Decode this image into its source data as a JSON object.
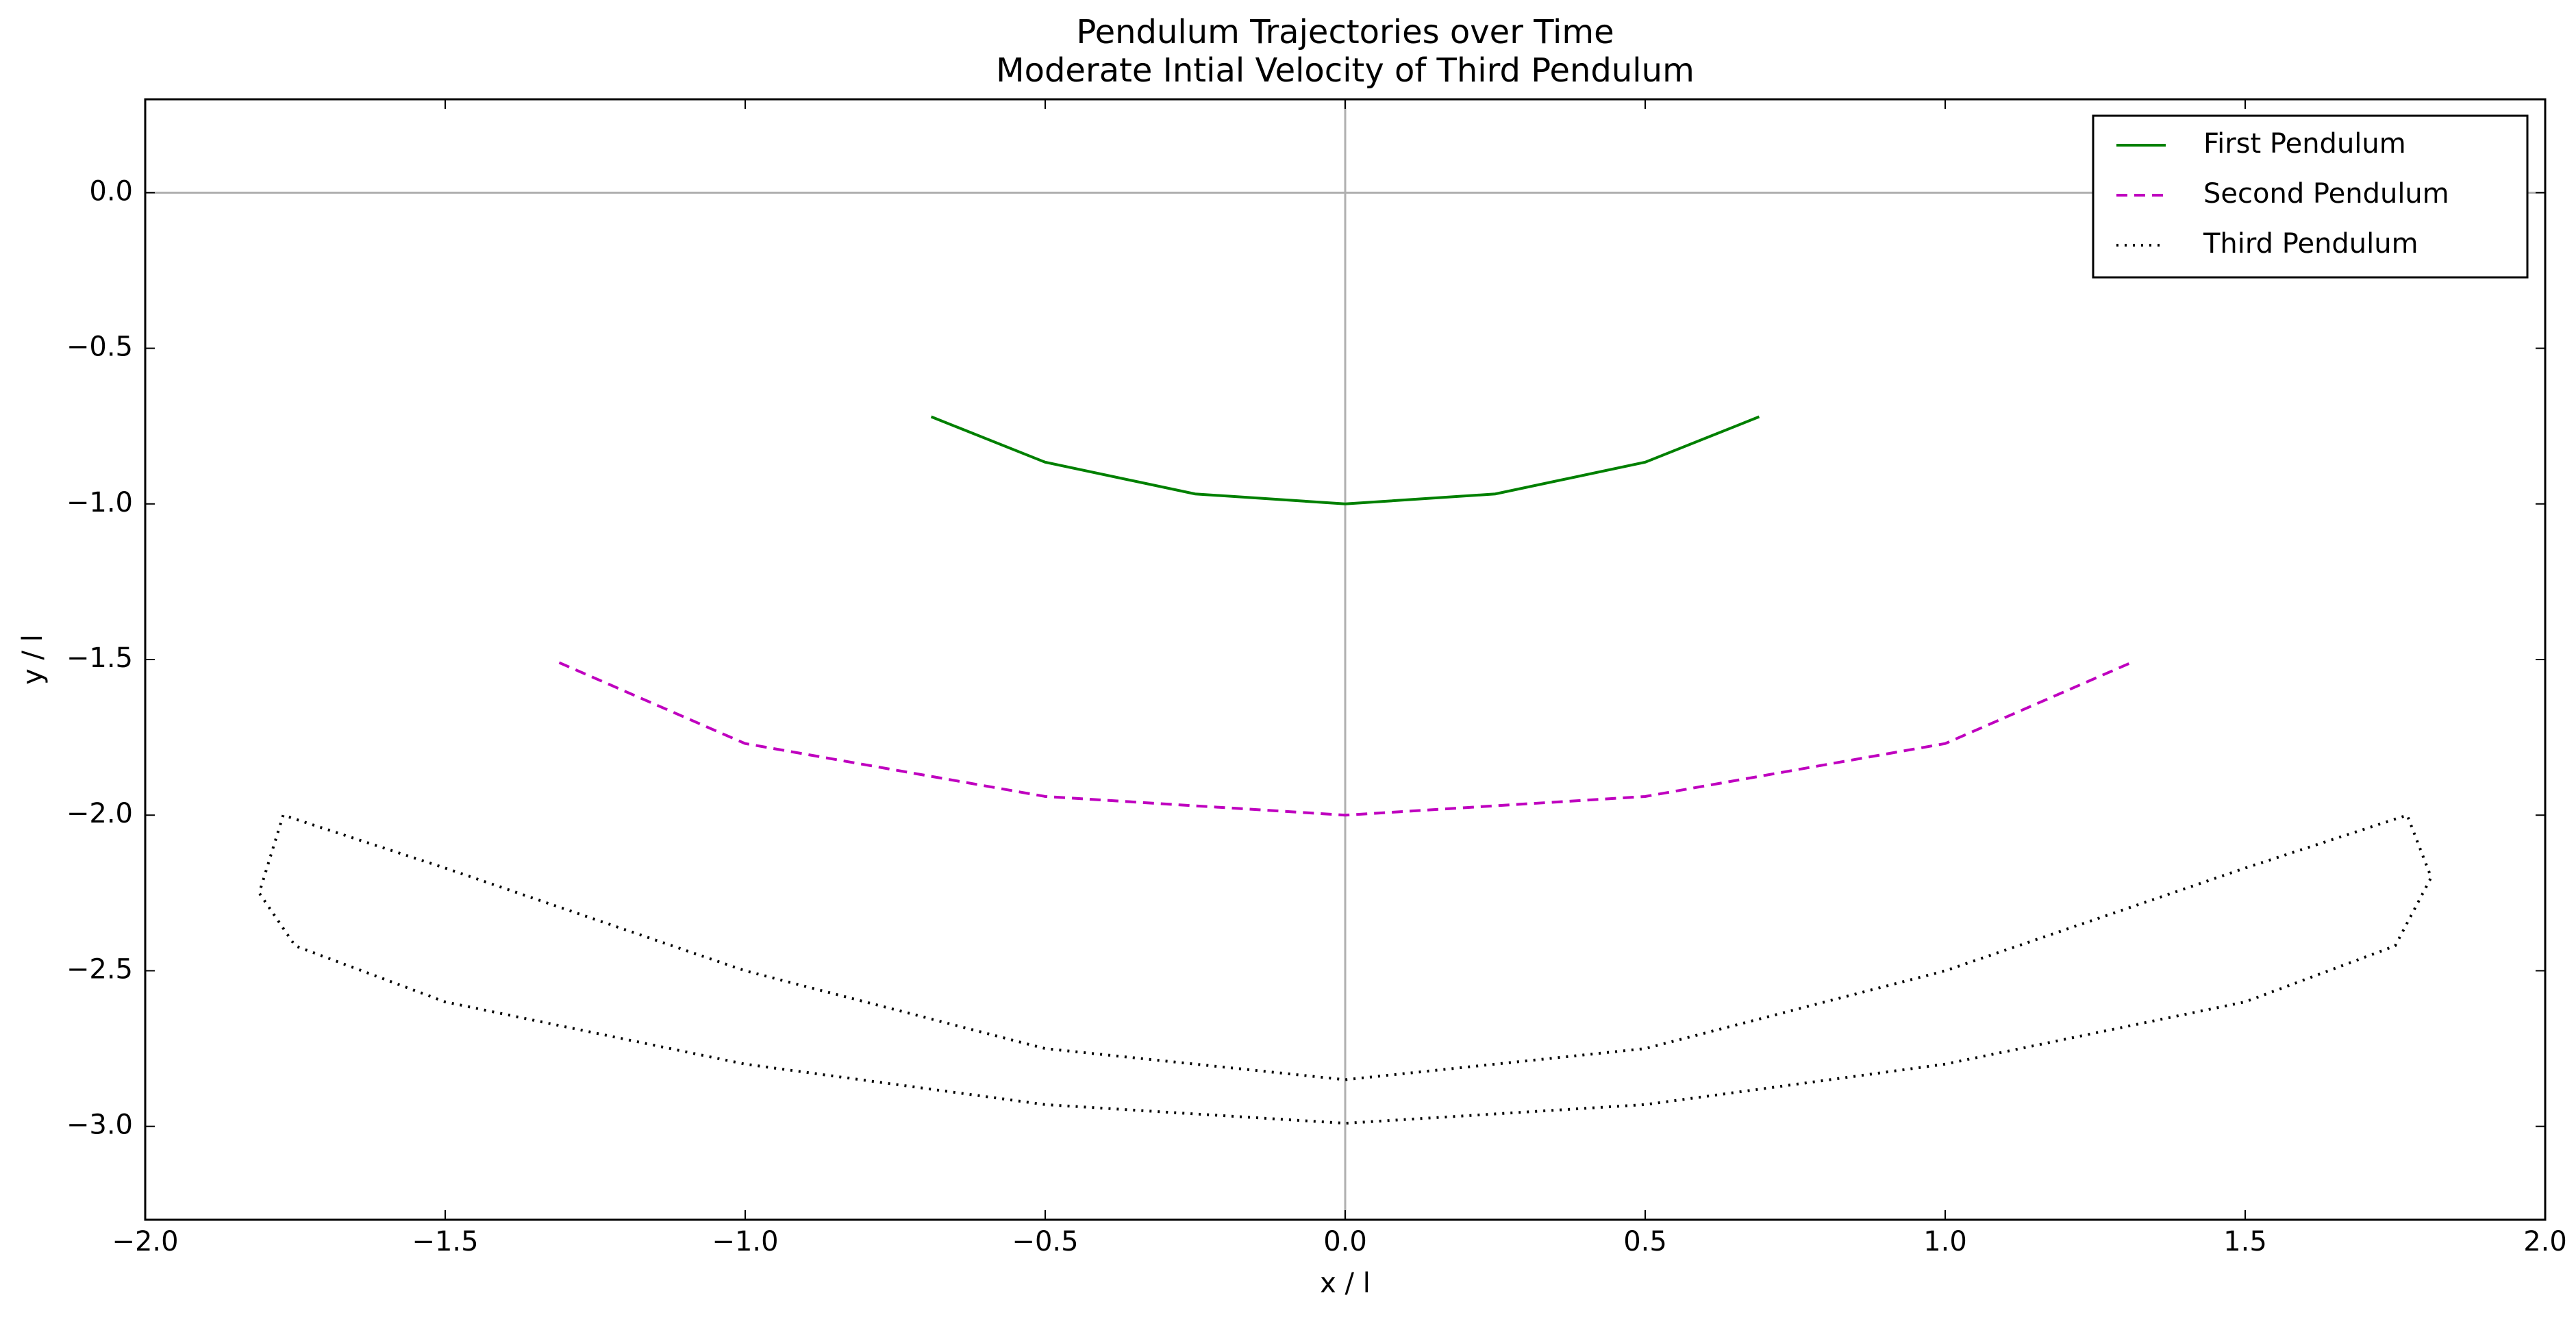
{
  "chart_data": {
    "type": "line",
    "title": "Pendulum Trajectories over Time",
    "subtitle": "Moderate Intial Velocity of Third Pendulum",
    "x_label": "x / l",
    "y_label": "y / l",
    "xlim": [
      -2.0,
      2.0
    ],
    "xticks": [
      {
        "value": -2.0,
        "label": "−2.0"
      },
      {
        "value": -1.5,
        "label": "−1.5"
      },
      {
        "value": -1.0,
        "label": "−1.0"
      },
      {
        "value": -0.5,
        "label": "−0.5"
      },
      {
        "value": 0.0,
        "label": "0.0"
      },
      0.5,
      {
        "value": 1.0,
        "label": "1.0"
      },
      1.5,
      {
        "value": 2.0,
        "label": "2.0"
      }
    ],
    "ylim": [
      -3.3,
      0.3
    ],
    "yticks": [
      {
        "value": 0.0,
        "label": "0.0"
      },
      {
        "value": -0.5,
        "label": "−0.5"
      },
      {
        "value": -1.0,
        "label": "−1.0"
      },
      {
        "value": -1.5,
        "label": "−1.5"
      },
      {
        "value": -2.0,
        "label": "−2.0"
      },
      {
        "value": -2.5,
        "label": "−2.5"
      },
      {
        "value": -3.0,
        "label": "−3.0"
      }
    ],
    "hlines": [
      0
    ],
    "vlines": [
      0
    ],
    "legend": "upper right",
    "series": [
      {
        "name": "First Pendulum",
        "color": "#008000",
        "style": "solid",
        "x": [
          -0.69,
          -0.5,
          -0.25,
          0.0,
          0.25,
          0.5,
          0.69
        ],
        "values": [
          -0.72,
          -0.866,
          -0.968,
          -1.0,
          -0.968,
          -0.866,
          -0.72
        ]
      },
      {
        "name": "Second Pendulum",
        "color": "#bf00bf",
        "style": "dashed",
        "x": [
          -1.31,
          -1.0,
          -0.5,
          0.0,
          0.5,
          1.0,
          1.31
        ],
        "values": [
          -1.51,
          -1.77,
          -1.94,
          -2.0,
          -1.94,
          -1.77,
          -1.51
        ]
      },
      {
        "name": "Third Pendulum",
        "color": "#000000",
        "style": "dotted",
        "x": [
          -1.77,
          -1.81,
          -1.75,
          -1.5,
          -1.0,
          -0.5,
          0.0,
          0.5,
          1.0,
          1.5,
          1.75,
          1.81,
          1.77,
          1.5,
          1.0,
          0.5,
          0.0,
          -0.5,
          -1.0,
          -1.5,
          -1.77
        ],
        "values": [
          -2.0,
          -2.25,
          -2.42,
          -2.6,
          -2.8,
          -2.93,
          -2.99,
          -2.93,
          -2.8,
          -2.6,
          -2.42,
          -2.2,
          -2.0,
          -2.17,
          -2.5,
          -2.75,
          -2.85,
          -2.75,
          -2.5,
          -2.17,
          -2.0
        ]
      }
    ]
  }
}
